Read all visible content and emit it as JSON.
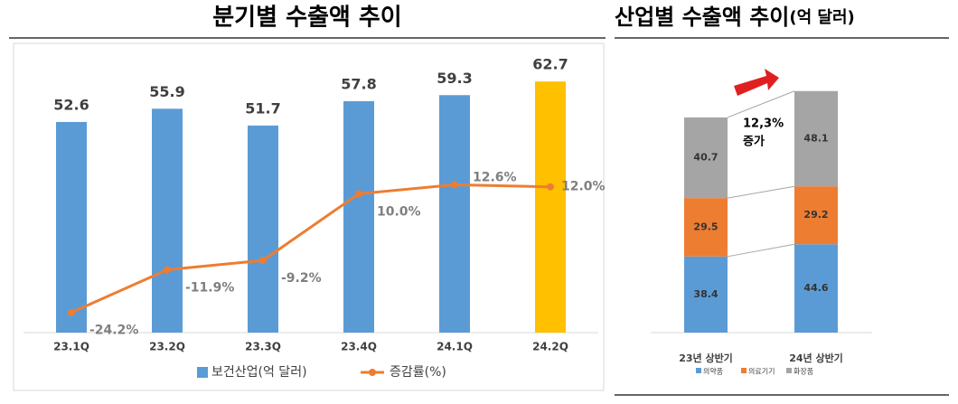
{
  "chart_data": [
    {
      "type": "bar-line",
      "title": "분기별 수출액 추이",
      "categories": [
        "23.1Q",
        "23.2Q",
        "23.3Q",
        "23.4Q",
        "24.1Q",
        "24.2Q"
      ],
      "series": [
        {
          "name": "보건산업(억 달러)",
          "type": "bar",
          "color": "#5b9bd5",
          "colors": [
            "#5b9bd5",
            "#5b9bd5",
            "#5b9bd5",
            "#5b9bd5",
            "#5b9bd5",
            "#ffc000"
          ],
          "values": [
            52.6,
            55.9,
            51.7,
            57.8,
            59.3,
            62.7
          ]
        },
        {
          "name": "증감률(%)",
          "type": "line",
          "axis": "y2",
          "color": "#ed7d31",
          "values": [
            -24.2,
            -11.9,
            -9.2,
            10.0,
            12.6,
            12.0
          ],
          "value_labels": [
            "-24.2%",
            "-11.9%",
            "-9.2%",
            "10.0%",
            "12.6%",
            "12.0%"
          ]
        }
      ],
      "ylim": [
        0,
        65
      ],
      "y2lim": [
        -30,
        45
      ],
      "legend": "bottom"
    },
    {
      "type": "stacked-bar",
      "title": "산업별 수출액 추이",
      "unit": "(억 달러)",
      "categories": [
        "23년 상반기",
        "24년 상반기"
      ],
      "series": [
        {
          "name": "의약품",
          "color": "#5b9bd5",
          "values": [
            38.4,
            44.6
          ]
        },
        {
          "name": "의료기기",
          "color": "#ed7d31",
          "values": [
            29.5,
            29.2
          ]
        },
        {
          "name": "화장품",
          "color": "#a5a5a5",
          "values": [
            40.7,
            48.1
          ]
        }
      ],
      "annotation": [
        "12,3%",
        "증가"
      ],
      "ylim": [
        0,
        130
      ],
      "legend": "bottom"
    }
  ]
}
